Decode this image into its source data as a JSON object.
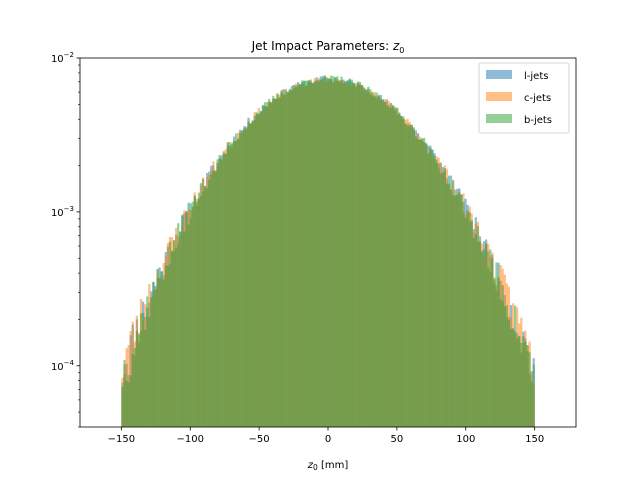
{
  "chart_data": {
    "type": "bar",
    "title_prefix": "Jet Impact Parameters: ",
    "title_var": "z",
    "title_sub": "0",
    "xlabel_var": "z",
    "xlabel_sub": "0",
    "xlabel_unit": " [mm]",
    "ylabel": "",
    "xlim": [
      -180,
      180
    ],
    "ylim": [
      4e-05,
      0.01
    ],
    "yscale": "log",
    "grid": false,
    "legend_position": "top-right",
    "x_ticks": [
      -150,
      -100,
      -50,
      0,
      50,
      100,
      150
    ],
    "x_tick_labels": [
      "−150",
      "−100",
      "−50",
      "0",
      "50",
      "100",
      "150"
    ],
    "y_ticks": [
      {
        "value": 0.01,
        "base": "10",
        "exp": "−2"
      },
      {
        "value": 0.001,
        "base": "10",
        "exp": "−3"
      },
      {
        "value": 0.0001,
        "base": "10",
        "exp": "−4"
      }
    ],
    "bin_range": [
      -150,
      150
    ],
    "bin_count": 200,
    "series": [
      {
        "name": "l-jets",
        "color": "#1f77b4",
        "opacity": 0.5,
        "sigma": 50.8,
        "peak": 0.0073,
        "seed": 11
      },
      {
        "name": "c-jets",
        "color": "#ff7f0e",
        "opacity": 0.5,
        "sigma": 51.3,
        "peak": 0.0072,
        "seed": 23
      },
      {
        "name": "b-jets",
        "color": "#2ca02c",
        "opacity": 0.5,
        "sigma": 50.3,
        "peak": 0.0074,
        "seed": 37
      }
    ]
  }
}
